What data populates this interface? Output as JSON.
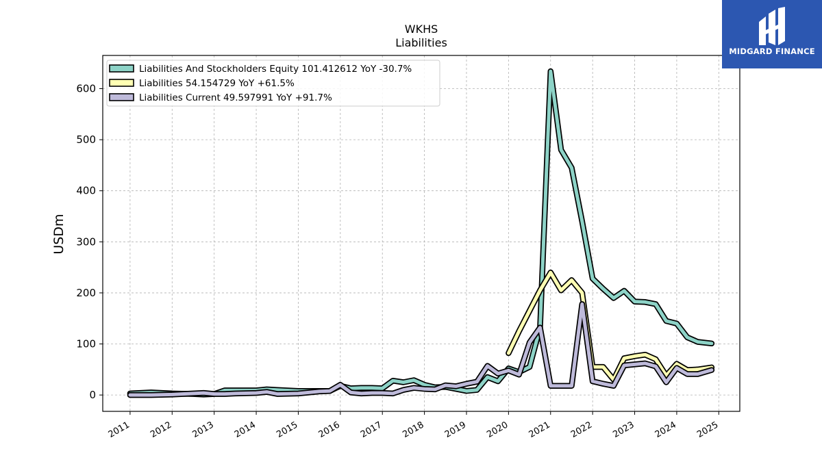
{
  "chart_data": {
    "type": "line",
    "title": "WKHS",
    "subtitle": "Liabilities",
    "ylabel": "USDm",
    "xlabel": "",
    "ylim": [
      -32,
      665
    ],
    "xlim": [
      2010.35,
      2025.5
    ],
    "grid": true,
    "legend_position": "top-left",
    "x_ticks": [
      "2011",
      "2012",
      "2013",
      "2014",
      "2015",
      "2016",
      "2017",
      "2018",
      "2019",
      "2020",
      "2021",
      "2022",
      "2023",
      "2024",
      "2025"
    ],
    "y_ticks": [
      "0",
      "100",
      "200",
      "300",
      "400",
      "500",
      "600"
    ],
    "series": [
      {
        "name": "Liabilities And Stockholders Equity",
        "legend_label": "Liabilities And Stockholders Equity  101.412612 YoY -30.7%",
        "color": "#8dd3c7",
        "points": [
          [
            2011.0,
            3
          ],
          [
            2011.5,
            5
          ],
          [
            2012.0,
            3
          ],
          [
            2012.5,
            2
          ],
          [
            2012.75,
            1
          ],
          [
            2013.0,
            2
          ],
          [
            2013.25,
            9
          ],
          [
            2013.5,
            9
          ],
          [
            2014.0,
            9
          ],
          [
            2014.25,
            11
          ],
          [
            2014.5,
            10
          ],
          [
            2015.0,
            8
          ],
          [
            2015.5,
            8
          ],
          [
            2015.75,
            8
          ],
          [
            2016.0,
            18
          ],
          [
            2016.25,
            13
          ],
          [
            2016.5,
            14
          ],
          [
            2016.75,
            14
          ],
          [
            2017.0,
            13
          ],
          [
            2017.25,
            28
          ],
          [
            2017.5,
            25
          ],
          [
            2017.75,
            29
          ],
          [
            2018.0,
            20
          ],
          [
            2018.25,
            15
          ],
          [
            2018.5,
            16
          ],
          [
            2018.75,
            12
          ],
          [
            2019.0,
            8
          ],
          [
            2019.25,
            10
          ],
          [
            2019.5,
            35
          ],
          [
            2019.75,
            27
          ],
          [
            2020.0,
            52
          ],
          [
            2020.25,
            45
          ],
          [
            2020.5,
            55
          ],
          [
            2020.75,
            132
          ],
          [
            2021.0,
            634
          ],
          [
            2021.25,
            480
          ],
          [
            2021.5,
            445
          ],
          [
            2021.75,
            340
          ],
          [
            2022.0,
            228
          ],
          [
            2022.25,
            208
          ],
          [
            2022.5,
            190
          ],
          [
            2022.75,
            204
          ],
          [
            2023.0,
            183
          ],
          [
            2023.25,
            182
          ],
          [
            2023.5,
            178
          ],
          [
            2023.75,
            145
          ],
          [
            2024.0,
            140
          ],
          [
            2024.25,
            113
          ],
          [
            2024.5,
            104
          ],
          [
            2024.83,
            101
          ]
        ]
      },
      {
        "name": "Liabilities",
        "legend_label": "Liabilities  54.154729 YoY +61.5%",
        "color": "#ffffb3",
        "points": [
          [
            2020.0,
            82
          ],
          [
            2020.25,
            125
          ],
          [
            2020.5,
            165
          ],
          [
            2020.75,
            205
          ],
          [
            2021.0,
            240
          ],
          [
            2021.25,
            205
          ],
          [
            2021.5,
            225
          ],
          [
            2021.75,
            200
          ],
          [
            2022.0,
            55
          ],
          [
            2022.25,
            55
          ],
          [
            2022.5,
            30
          ],
          [
            2022.75,
            72
          ],
          [
            2023.0,
            76
          ],
          [
            2023.25,
            79
          ],
          [
            2023.5,
            70
          ],
          [
            2023.75,
            38
          ],
          [
            2024.0,
            61
          ],
          [
            2024.25,
            49
          ],
          [
            2024.5,
            50
          ],
          [
            2024.83,
            54
          ]
        ]
      },
      {
        "name": "Liabilities Current",
        "legend_label": "Liabilities Current  49.597991 YoY +91.7%",
        "color": "#bebada",
        "points": [
          [
            2011.0,
            0
          ],
          [
            2011.5,
            0
          ],
          [
            2012.0,
            1
          ],
          [
            2012.5,
            3
          ],
          [
            2012.75,
            4
          ],
          [
            2013.0,
            2
          ],
          [
            2013.25,
            2
          ],
          [
            2013.5,
            3
          ],
          [
            2014.0,
            4
          ],
          [
            2014.25,
            6
          ],
          [
            2014.5,
            2
          ],
          [
            2015.0,
            3
          ],
          [
            2015.5,
            7
          ],
          [
            2015.75,
            8
          ],
          [
            2016.0,
            20
          ],
          [
            2016.25,
            5
          ],
          [
            2016.5,
            3
          ],
          [
            2016.75,
            4
          ],
          [
            2017.0,
            4
          ],
          [
            2017.25,
            3
          ],
          [
            2017.5,
            10
          ],
          [
            2017.75,
            14
          ],
          [
            2018.0,
            12
          ],
          [
            2018.25,
            11
          ],
          [
            2018.5,
            19
          ],
          [
            2018.75,
            17
          ],
          [
            2019.0,
            22
          ],
          [
            2019.25,
            26
          ],
          [
            2019.5,
            57
          ],
          [
            2019.75,
            42
          ],
          [
            2020.0,
            48
          ],
          [
            2020.25,
            40
          ],
          [
            2020.5,
            103
          ],
          [
            2020.75,
            132
          ],
          [
            2021.0,
            18
          ],
          [
            2021.25,
            18
          ],
          [
            2021.5,
            18
          ],
          [
            2021.75,
            178
          ],
          [
            2022.0,
            27
          ],
          [
            2022.25,
            22
          ],
          [
            2022.5,
            18
          ],
          [
            2022.75,
            58
          ],
          [
            2023.0,
            60
          ],
          [
            2023.25,
            62
          ],
          [
            2023.5,
            56
          ],
          [
            2023.75,
            25
          ],
          [
            2024.0,
            53
          ],
          [
            2024.25,
            41
          ],
          [
            2024.5,
            41
          ],
          [
            2024.83,
            49
          ]
        ]
      }
    ]
  },
  "logo": {
    "brand": "MIDGARD FINANCE"
  }
}
